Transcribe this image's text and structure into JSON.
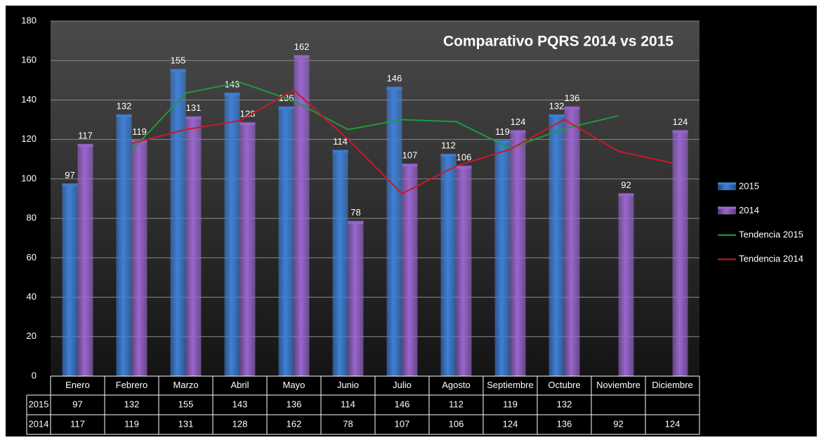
{
  "chart_data": {
    "type": "bar",
    "title": "Comparativo PQRS 2014 vs 2015",
    "categories": [
      "Enero",
      "Febrero",
      "Marzo",
      "Abril",
      "Mayo",
      "Junio",
      "Julio",
      "Agosto",
      "Septiembre",
      "Octubre",
      "Noviembre",
      "Diciembre"
    ],
    "series": [
      {
        "name": "2015",
        "type": "bar",
        "color": "#3f80d8",
        "values": [
          97,
          132,
          155,
          143,
          136,
          114,
          146,
          112,
          119,
          132,
          null,
          null
        ]
      },
      {
        "name": "2014",
        "type": "bar",
        "color": "#9a66cf",
        "values": [
          117,
          119,
          131,
          128,
          162,
          78,
          107,
          106,
          124,
          136,
          92,
          124
        ]
      },
      {
        "name": "Tendencia 2015",
        "type": "line",
        "color": "#1f9a3c",
        "values": [
          null,
          114.5,
          143.5,
          149,
          139.5,
          125,
          130,
          129,
          115.5,
          125.5,
          132,
          null
        ]
      },
      {
        "name": "Tendencia 2014",
        "type": "line",
        "color": "#c81a2a",
        "values": [
          null,
          118,
          125,
          129.5,
          145,
          120,
          92.5,
          106.5,
          115,
          130,
          114,
          108
        ]
      }
    ],
    "ylim": [
      0,
      180
    ],
    "yticks": [
      0,
      20,
      40,
      60,
      80,
      100,
      120,
      140,
      160,
      180
    ],
    "grid": true,
    "legend": "right",
    "data_table": true
  }
}
